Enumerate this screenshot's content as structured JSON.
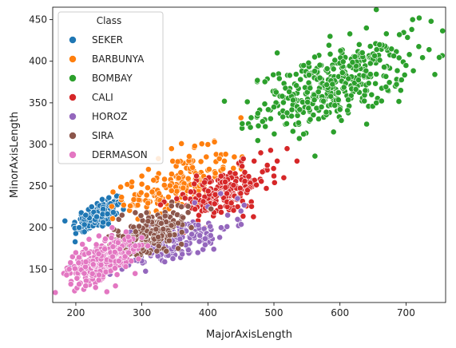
{
  "chart_data": {
    "type": "scatter",
    "xlabel": "MajorAxisLength",
    "ylabel": "MinorAxisLength",
    "xlim": [
      165,
      760
    ],
    "ylim": [
      110,
      465
    ],
    "xticks": [
      200,
      300,
      400,
      500,
      600,
      700
    ],
    "yticks": [
      150,
      200,
      250,
      300,
      350,
      400,
      450
    ],
    "grid": false,
    "legend": {
      "title": "Class",
      "placement": "top-left"
    },
    "series": [
      {
        "name": "SEKER",
        "color": "#1f77b4",
        "clusters": [
          {
            "cx": 235,
            "cy": 215,
            "sx": 20,
            "sy": 11,
            "n": 110,
            "corr": 0.6
          }
        ],
        "points": [
          [
            199,
            183
          ],
          [
            200,
            193
          ],
          [
            205,
            200
          ],
          [
            215,
            215
          ],
          [
            224,
            225
          ],
          [
            240,
            234
          ],
          [
            250,
            236
          ],
          [
            262,
            238
          ],
          [
            268,
            230
          ],
          [
            272,
            222
          ],
          [
            213,
            195
          ]
        ]
      },
      {
        "name": "BARBUNYA",
        "color": "#ff7f0e",
        "clusters": [
          {
            "cx": 355,
            "cy": 250,
            "sx": 40,
            "sy": 20,
            "n": 190,
            "corr": 0.5
          }
        ],
        "points": [
          [
            278,
            252
          ],
          [
            285,
            255
          ],
          [
            300,
            262
          ],
          [
            310,
            270
          ],
          [
            325,
            283
          ],
          [
            345,
            295
          ],
          [
            360,
            301
          ],
          [
            380,
            298
          ],
          [
            400,
            300
          ],
          [
            410,
            303
          ],
          [
            425,
            280
          ],
          [
            440,
            285
          ],
          [
            452,
            285
          ],
          [
            450,
            332
          ],
          [
            440,
            262
          ]
        ]
      },
      {
        "name": "BOMBAY",
        "color": "#2ca02c",
        "clusters": [
          {
            "cx": 590,
            "cy": 370,
            "sx": 55,
            "sy": 24,
            "n": 380,
            "corr": 0.55
          }
        ],
        "points": [
          [
            425,
            352
          ],
          [
            452,
            325
          ],
          [
            475,
            377
          ],
          [
            500,
            345
          ],
          [
            505,
            410
          ],
          [
            545,
            395
          ],
          [
            585,
            430
          ],
          [
            615,
            433
          ],
          [
            640,
            440
          ],
          [
            655,
            462
          ],
          [
            690,
            432
          ],
          [
            710,
            450
          ],
          [
            720,
            452
          ],
          [
            738,
            448
          ],
          [
            735,
            414
          ],
          [
            700,
            395
          ],
          [
            692,
            365
          ],
          [
            655,
            350
          ],
          [
            600,
            342
          ],
          [
            555,
            330
          ],
          [
            520,
            338
          ],
          [
            660,
            420
          ]
        ]
      },
      {
        "name": "CALI",
        "color": "#d62728",
        "clusters": [
          {
            "cx": 420,
            "cy": 240,
            "sx": 36,
            "sy": 17,
            "n": 200,
            "corr": 0.6
          }
        ],
        "points": [
          [
            470,
            280
          ],
          [
            480,
            290
          ],
          [
            495,
            293
          ],
          [
            505,
            280
          ],
          [
            520,
            295
          ],
          [
            535,
            280
          ],
          [
            515,
            260
          ],
          [
            460,
            245
          ],
          [
            490,
            275
          ]
        ]
      },
      {
        "name": "HOROZ",
        "color": "#9467bd",
        "clusters": [
          {
            "cx": 340,
            "cy": 182,
            "sx": 48,
            "sy": 16,
            "n": 220,
            "corr": 0.65
          }
        ],
        "points": [
          [
            270,
            150
          ],
          [
            280,
            155
          ],
          [
            300,
            160
          ],
          [
            420,
            200
          ],
          [
            430,
            215
          ],
          [
            445,
            210
          ],
          [
            450,
            220
          ],
          [
            455,
            227
          ],
          [
            445,
            235
          ],
          [
            400,
            225
          ],
          [
            380,
            230
          ],
          [
            245,
            148
          ]
        ]
      },
      {
        "name": "SIRA",
        "color": "#8c564b",
        "clusters": [
          {
            "cx": 315,
            "cy": 195,
            "sx": 28,
            "sy": 13,
            "n": 200,
            "corr": 0.55
          }
        ],
        "points": [
          [
            265,
            210
          ],
          [
            270,
            215
          ],
          [
            290,
            218
          ],
          [
            345,
            226
          ],
          [
            360,
            225
          ],
          [
            375,
            200
          ],
          [
            360,
            180
          ],
          [
            355,
            175
          ],
          [
            300,
            175
          ],
          [
            280,
            180
          ],
          [
            260,
            185
          ]
        ]
      },
      {
        "name": "DERMASON",
        "color": "#e377c2",
        "clusters": [
          {
            "cx": 240,
            "cy": 160,
            "sx": 24,
            "sy": 12,
            "n": 320,
            "corr": 0.55
          }
        ],
        "points": [
          [
            186,
            143
          ],
          [
            190,
            150
          ],
          [
            192,
            158
          ],
          [
            195,
            165
          ],
          [
            200,
            170
          ],
          [
            205,
            132
          ],
          [
            215,
            130
          ],
          [
            230,
            128
          ],
          [
            247,
            123
          ],
          [
            260,
            130
          ],
          [
            280,
            170
          ],
          [
            290,
            178
          ],
          [
            300,
            188
          ],
          [
            255,
            200
          ],
          [
            235,
            190
          ],
          [
            220,
            186
          ],
          [
            210,
            180
          ]
        ]
      }
    ]
  }
}
